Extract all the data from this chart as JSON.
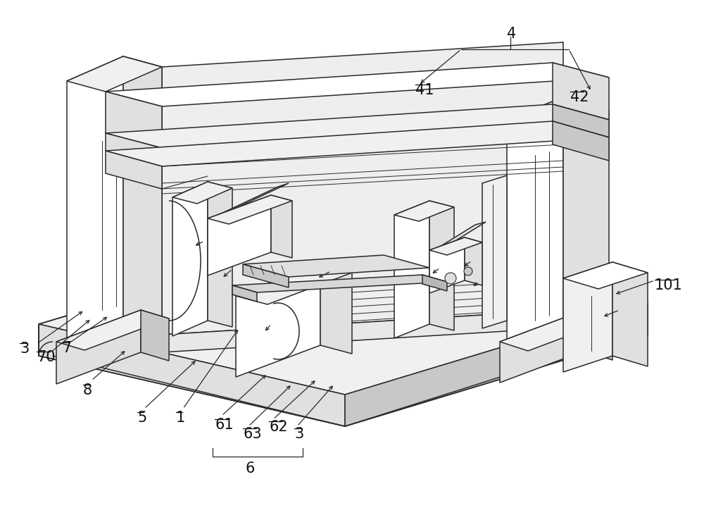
{
  "bg_color": "#ffffff",
  "lc": "#2a2a2a",
  "lw": 1.1,
  "fc_white": "#ffffff",
  "fc_light": "#f0f0f0",
  "fc_mid": "#e0e0e0",
  "fc_dark": "#c8c8c8",
  "fc_darker": "#b8b8b8"
}
